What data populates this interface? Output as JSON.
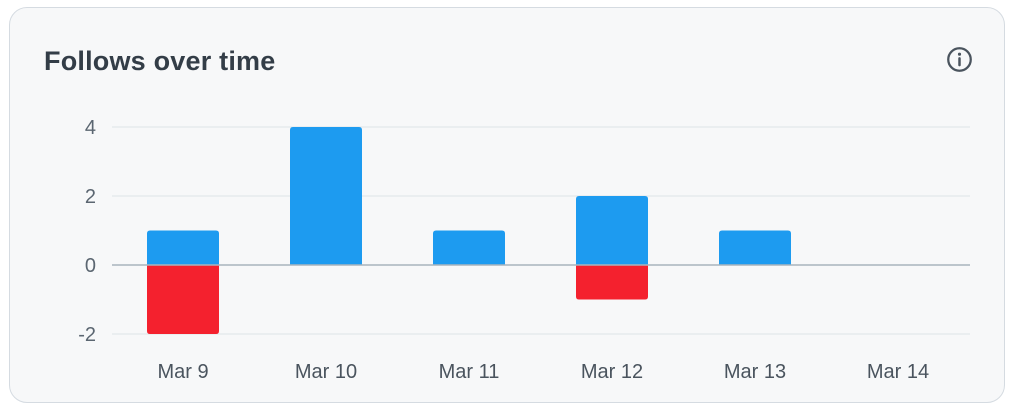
{
  "card": {
    "title": "Follows over time",
    "info_icon": "info-circle-icon"
  },
  "colors": {
    "follows": "#1d9bf0",
    "unfollows": "#f4212e",
    "grid": "#e3e7eb",
    "zero_line": "#a9b4be"
  },
  "chart_data": {
    "type": "bar",
    "stacked": true,
    "categories": [
      "Mar 9",
      "Mar 10",
      "Mar 11",
      "Mar 12",
      "Mar 13",
      "Mar 14"
    ],
    "series": [
      {
        "values": [
          1,
          4,
          1,
          2,
          1,
          0
        ],
        "color": "#1d9bf0"
      },
      {
        "values": [
          -2,
          0,
          0,
          -1,
          0,
          0
        ],
        "color": "#f4212e"
      }
    ],
    "yticks": [
      -2,
      0,
      2,
      4
    ],
    "ylim": [
      -2,
      4
    ],
    "grid": true,
    "title": "Follows over time",
    "xlabel": "",
    "ylabel": ""
  }
}
